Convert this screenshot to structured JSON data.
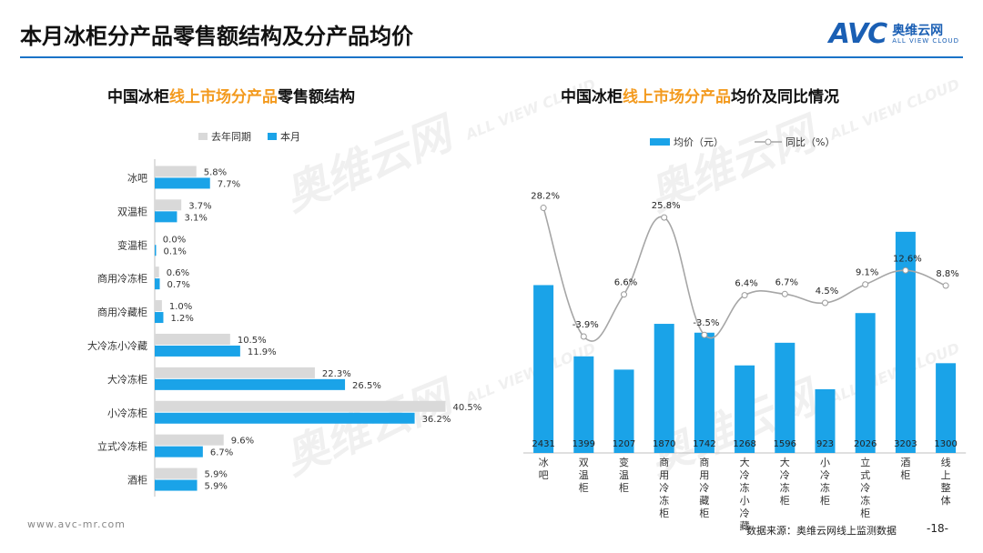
{
  "page": {
    "title": "本月冰柜分产品零售额结构及分产品均价",
    "logo_text": "AVC",
    "logo_cn": "奥维云网",
    "logo_en": "ALL VIEW CLOUD",
    "watermark_cn": "奥维云网",
    "watermark_en": "ALL VIEW CLOUD",
    "footer_url": "www.avc-mr.com",
    "footer_source": "数据来源：奥维云网线上监测数据",
    "page_number": "-18-"
  },
  "colors": {
    "blue": "#1aa3e8",
    "gray": "#d9d9d9",
    "line": "#a6a6a6",
    "accent": "#f39a1e",
    "brand": "#1a5fb4"
  },
  "chart_data": [
    {
      "type": "bar",
      "orientation": "horizontal",
      "title_parts": [
        "中国冰柜",
        "线上市场分产品",
        "零售额结构"
      ],
      "categories": [
        "冰吧",
        "双温柜",
        "变温柜",
        "商用冷冻柜",
        "商用冷藏柜",
        "大冷冻小冷藏",
        "大冷冻柜",
        "小冷冻柜",
        "立式冷冻柜",
        "酒柜"
      ],
      "series": [
        {
          "name": "去年同期",
          "values": [
            5.8,
            3.7,
            0.0,
            0.6,
            1.0,
            10.5,
            22.3,
            40.5,
            9.6,
            5.9
          ],
          "labels": [
            "5.8%",
            "3.7%",
            "0.0%",
            "0.6%",
            "1.0%",
            "10.5%",
            "22.3%",
            "40.5%",
            "9.6%",
            "5.9%"
          ]
        },
        {
          "name": "本月",
          "values": [
            7.7,
            3.1,
            0.1,
            0.7,
            1.2,
            11.9,
            26.5,
            36.2,
            6.7,
            5.9
          ],
          "labels": [
            "7.7%",
            "3.1%",
            "0.1%",
            "0.7%",
            "1.2%",
            "11.9%",
            "26.5%",
            "36.2%",
            "6.7%",
            "5.9%"
          ]
        }
      ],
      "xlim": [
        0,
        45
      ]
    },
    {
      "type": "bar+line",
      "title_parts": [
        "中国冰柜",
        "线上市场分产品",
        "均价及同比情况"
      ],
      "categories": [
        "冰吧",
        "双温柜",
        "变温柜",
        "商用冷冻柜",
        "商用冷藏柜",
        "大冷冻小冷藏",
        "大冷冻柜",
        "小冷冻柜",
        "立式冷冻柜",
        "酒柜",
        "线上整体"
      ],
      "series": [
        {
          "name": "均价（元）",
          "type": "bar",
          "values": [
            2431,
            1399,
            1207,
            1870,
            1742,
            1268,
            1596,
            923,
            2026,
            3203,
            1300
          ],
          "labels": [
            "2431",
            "1399",
            "1207",
            "1870",
            "1742",
            "1268",
            "1596",
            "923",
            "2026",
            "3203",
            "1300"
          ]
        },
        {
          "name": "同比（%）",
          "type": "line",
          "values": [
            28.2,
            -3.9,
            6.6,
            25.8,
            -3.5,
            6.4,
            6.7,
            4.5,
            9.1,
            12.6,
            8.8
          ],
          "labels": [
            "28.2%",
            "-3.9%",
            "6.6%",
            "25.8%",
            "-3.5%",
            "6.4%",
            "6.7%",
            "4.5%",
            "9.1%",
            "12.6%",
            "8.8%"
          ]
        }
      ],
      "ylim_bar": [
        0,
        3400
      ],
      "ylim_line": [
        -30,
        34
      ]
    }
  ]
}
